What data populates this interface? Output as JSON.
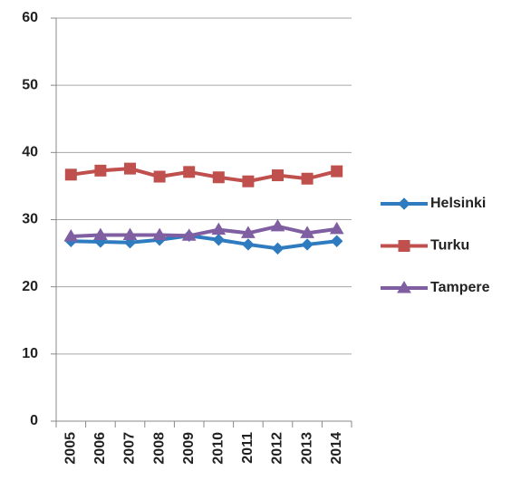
{
  "chart_data": {
    "type": "line",
    "categories": [
      "2005",
      "2006",
      "2007",
      "2008",
      "2009",
      "2010",
      "2011",
      "2012",
      "2013",
      "2014"
    ],
    "series": [
      {
        "name": "Helsinki",
        "color": "#2f7bbf",
        "marker": "diamond",
        "values": [
          26.8,
          26.7,
          26.6,
          27.0,
          27.6,
          27.0,
          26.3,
          25.7,
          26.3,
          26.8
        ]
      },
      {
        "name": "Turku",
        "color": "#c0504d",
        "marker": "square",
        "values": [
          36.7,
          37.3,
          37.6,
          36.4,
          37.1,
          36.3,
          35.7,
          36.6,
          36.1,
          37.2
        ]
      },
      {
        "name": "Tampere",
        "color": "#7f5fa2",
        "marker": "triangle",
        "values": [
          27.5,
          27.7,
          27.7,
          27.7,
          27.6,
          28.5,
          28.0,
          29.0,
          28.0,
          28.6
        ]
      }
    ],
    "ylim": [
      0,
      60
    ],
    "yticks": [
      0,
      10,
      20,
      30,
      40,
      50,
      60
    ],
    "grid": true,
    "legend": "right"
  }
}
